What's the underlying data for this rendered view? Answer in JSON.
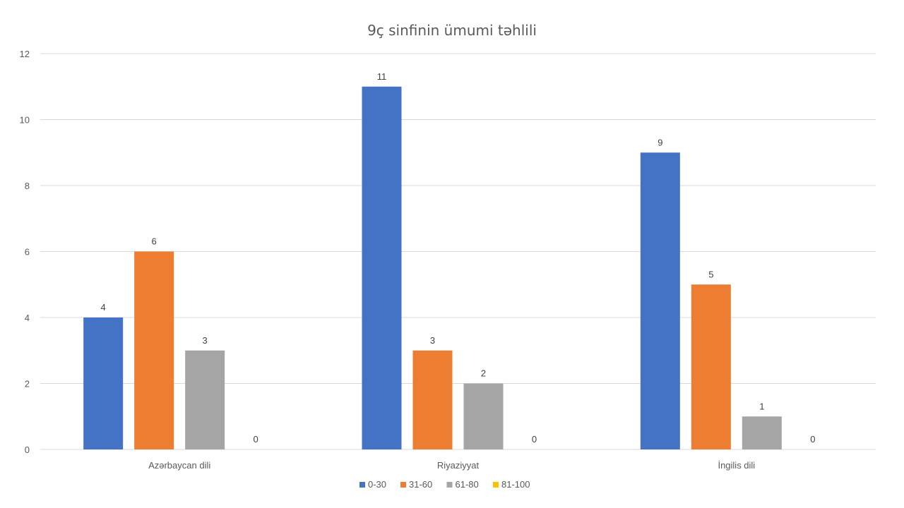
{
  "chart_data": {
    "type": "bar",
    "title": "9ç sinfinin ümumi təhlili",
    "xlabel": "",
    "ylabel": "",
    "ylim": [
      0,
      12
    ],
    "y_ticks": [
      0,
      2,
      4,
      6,
      8,
      10,
      12
    ],
    "grid": true,
    "legend_position": "bottom",
    "categories": [
      "Azərbaycan dili",
      "Riyaziyyat",
      "İngilis dili"
    ],
    "series": [
      {
        "name": "0-30",
        "color": "#4472c4",
        "values": [
          4,
          11,
          9
        ]
      },
      {
        "name": "31-60",
        "color": "#ed7d31",
        "values": [
          6,
          3,
          5
        ]
      },
      {
        "name": "61-80",
        "color": "#a5a5a5",
        "values": [
          3,
          2,
          1
        ]
      },
      {
        "name": "81-100",
        "color": "#ffc000",
        "values": [
          0,
          0,
          0
        ]
      }
    ]
  }
}
